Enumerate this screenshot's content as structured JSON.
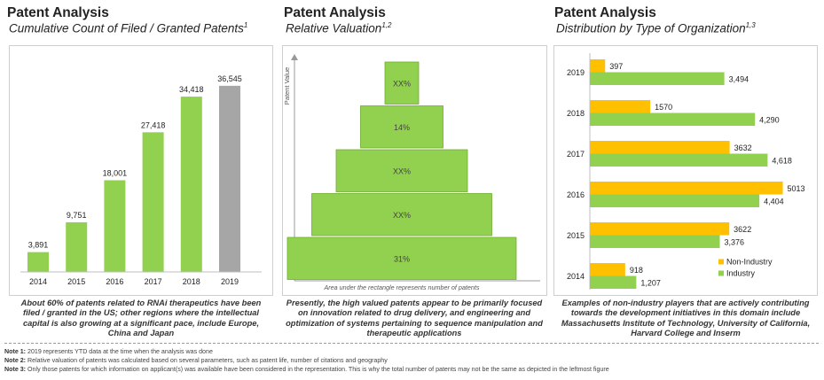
{
  "panels": [
    {
      "title": "Patent Analysis",
      "subtitle": "Cumulative Count of Filed / Granted Patents",
      "sup": "1",
      "caption": "About 60% of patents related to RNAi therapeutics have been filed / granted in the US; other regions where the intellectual capital is also growing at a significant pace, include Europe, China and Japan"
    },
    {
      "title": "Patent Analysis",
      "subtitle": "Relative Valuation",
      "sup": "1,2",
      "caption": "Presently, the high valued patents appear to be primarily focused on innovation related to drug delivery, and engineering and optimization of systems pertaining to sequence manipulation and therapeutic applications"
    },
    {
      "title": "Patent Analysis",
      "subtitle": "Distribution by Type of Organization",
      "sup": "1,3",
      "caption": "Examples of non-industry players that are actively contributing towards the development initiatives in this domain include Massachusetts Institute of Technology, University of California, Harvard College and Inserm"
    }
  ],
  "notes": [
    {
      "label": "Note 1:",
      "text": "2019 represents YTD data at the time when the analysis was done"
    },
    {
      "label": "Note 2:",
      "text": "Relative valuation of patents was calculated based on several parameters, such as patent life, number of citations and geography"
    },
    {
      "label": "Note 3:",
      "text": "Only those patents for which information on applicant(s) was available have been considered in the representation. This is why the total number of patents may not be the same as depicted in the leftmost figure"
    }
  ],
  "colors": {
    "green": "#92d050",
    "grey": "#a6a6a6",
    "orange": "#ffc000"
  },
  "chart_data": [
    {
      "type": "bar",
      "categories": [
        "2014",
        "2015",
        "2016",
        "2017",
        "2018",
        "2019"
      ],
      "values": [
        3891,
        9751,
        18001,
        27418,
        34418,
        36545
      ],
      "value_labels": [
        "3,891",
        "9,751",
        "18,001",
        "27,418",
        "34,418",
        "36,545"
      ],
      "highlight_last": true,
      "ylim": [
        0,
        40000
      ],
      "grid": false,
      "xlabel": "",
      "ylabel": ""
    },
    {
      "type": "bar",
      "orientation": "pyramid",
      "levels": [
        "XX%",
        "14%",
        "XX%",
        "XX%",
        "31%"
      ],
      "ylabel": "Patent Value",
      "xlabel": "Area under the rectangle represents number of patents"
    },
    {
      "type": "bar",
      "orientation": "horizontal",
      "categories": [
        "2019",
        "2018",
        "2017",
        "2016",
        "2015",
        "2014"
      ],
      "series": [
        {
          "name": "Non-Industry",
          "values": [
            397,
            1570,
            3632,
            5013,
            3622,
            918
          ],
          "labels": [
            "397",
            "1570",
            "3632",
            "5013",
            "3622",
            "918"
          ]
        },
        {
          "name": "Industry",
          "values": [
            3494,
            4290,
            4618,
            4404,
            3376,
            1207
          ],
          "labels": [
            "3,494",
            "4,290",
            "4,618",
            "4,404",
            "3,376",
            "1,207"
          ]
        }
      ],
      "xlim": [
        0,
        5300
      ],
      "legend": "bottom-right",
      "grid": false
    }
  ]
}
